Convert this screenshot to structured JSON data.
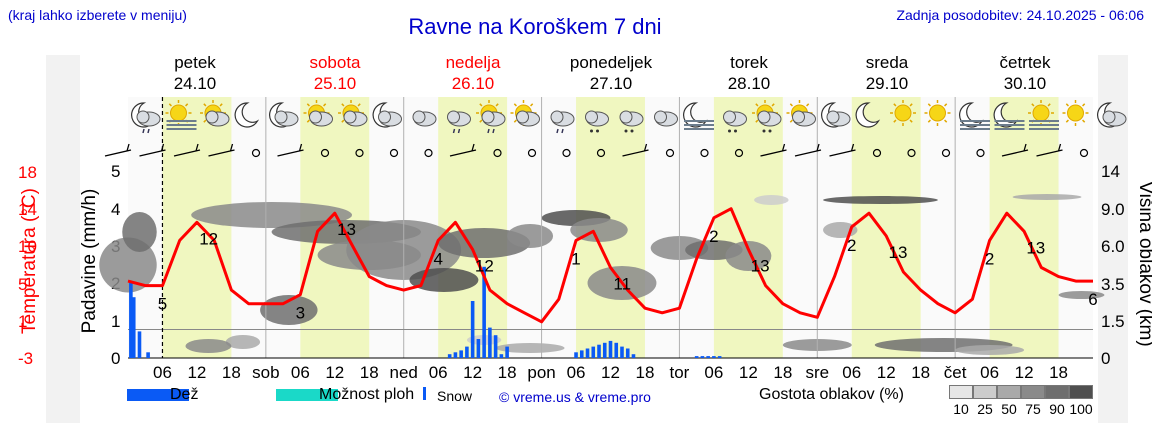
{
  "header": {
    "hint": "(kraj lahko izberete v meniju)",
    "title": "Ravne na Koroškem 7 dni",
    "updated": "Zadnja posodobitev: 24.10.2025 - 06:06"
  },
  "colors": {
    "temperature_line": "#ff0000",
    "rain_bar": "#0a5af5",
    "sleet": "#1ad9c8",
    "daytime_band": "#f0f7c0",
    "night_band": "#fafafa"
  },
  "days": [
    {
      "name": "petek",
      "date": "24.10",
      "color": "#000000"
    },
    {
      "name": "sobota",
      "date": "25.10",
      "color": "#ff0000"
    },
    {
      "name": "nedelja",
      "date": "26.10",
      "color": "#ff0000"
    },
    {
      "name": "ponedeljek",
      "date": "27.10",
      "color": "#000000"
    },
    {
      "name": "torek",
      "date": "28.10",
      "color": "#000000"
    },
    {
      "name": "sreda",
      "date": "29.10",
      "color": "#000000"
    },
    {
      "name": "četrtek",
      "date": "30.10",
      "color": "#000000"
    }
  ],
  "icons": [
    "moon-cloud-drizzle-icon",
    "sun-fog-icon",
    "sun-cloud-icon",
    "moon-icon",
    "moon-cloud-icon",
    "sun-cloud-icon",
    "sun-cloud-icon",
    "moon-cloud-icon",
    "cloud-icon",
    "cloud-drizzle-icon",
    "sun-cloud-drizzle-icon",
    "sun-cloud-icon",
    "cloud-rain-icon",
    "cloud-snow-icon",
    "cloud-snow-icon",
    "cloud-icon",
    "moon-fog-icon",
    "cloud-snow-icon",
    "sun-cloud-snow-icon",
    "sun-cloud-icon",
    "moon-cloud-icon",
    "moon-icon",
    "sun-icon",
    "sun-icon",
    "moon-fog-icon",
    "moon-fog-icon",
    "sun-fog-icon",
    "sun-icon",
    "moon-cloud-icon"
  ],
  "axes": {
    "temperature": {
      "title": "Temperatura (°C)",
      "ticks": [
        "18",
        "14",
        "10",
        "5",
        "1",
        "-3"
      ]
    },
    "rain": {
      "title": "Padavine (mm/h)",
      "ticks": [
        "5",
        "4",
        "3",
        "2",
        "1",
        "0"
      ]
    },
    "cloud_height": {
      "title": "Višina oblakov (km)",
      "ticks": [
        "14",
        "9.0",
        "6.0",
        "3.5",
        "1.5",
        "0"
      ]
    },
    "x_ticks": [
      "06",
      "12",
      "18",
      "sob",
      "06",
      "12",
      "18",
      "ned",
      "06",
      "12",
      "18",
      "pon",
      "06",
      "12",
      "18",
      "tor",
      "06",
      "12",
      "18",
      "sre",
      "06",
      "12",
      "18",
      "čet",
      "06",
      "12",
      "18"
    ]
  },
  "chart_data": {
    "type": "line",
    "title": "Ravne na Koroškem 7 dni",
    "ylabel": "Temperatura (°C)",
    "ylim": [
      -3,
      18
    ],
    "x_unit": "hours from 24.10 00:00",
    "series": [
      {
        "x": [
          0,
          3,
          6,
          9,
          12,
          15,
          18,
          21,
          24,
          27,
          30,
          33,
          36,
          39,
          42,
          45,
          48,
          51,
          54,
          57,
          60,
          63,
          66,
          69,
          72,
          75,
          78,
          81,
          84,
          87,
          90,
          93,
          96,
          99,
          102,
          105,
          108,
          111,
          114,
          117,
          120,
          123,
          126,
          129,
          132,
          135,
          138,
          141,
          144,
          147,
          150,
          153,
          156,
          159,
          162,
          165,
          168
        ],
        "values": [
          5.5,
          5.0,
          5.0,
          10.0,
          12.0,
          10.0,
          4.5,
          3.0,
          3.0,
          3.0,
          4.0,
          11.0,
          13.0,
          9.5,
          6.0,
          5.0,
          4.5,
          5.0,
          10.0,
          12.0,
          9.0,
          4.5,
          3.0,
          2.0,
          1.0,
          3.5,
          10.0,
          11.0,
          7.0,
          4.5,
          2.5,
          2.0,
          2.5,
          8.0,
          12.5,
          13.5,
          9.0,
          5.0,
          3.0,
          2.0,
          1.5,
          6.0,
          11.5,
          13.0,
          10.5,
          6.5,
          4.5,
          3.0,
          2.0,
          3.5,
          10.0,
          13.0,
          11.0,
          7.0,
          6.0,
          5.5,
          5.5
        ]
      }
    ],
    "labels": [
      {
        "x": 6,
        "text": "5"
      },
      {
        "x": 13,
        "text": "12"
      },
      {
        "x": 30,
        "text": "3"
      },
      {
        "x": 37,
        "text": "13"
      },
      {
        "x": 54,
        "text": "4"
      },
      {
        "x": 61,
        "text": "12"
      },
      {
        "x": 78,
        "text": "1"
      },
      {
        "x": 85,
        "text": "11"
      },
      {
        "x": 102,
        "text": "2"
      },
      {
        "x": 109,
        "text": "13"
      },
      {
        "x": 126,
        "text": "2"
      },
      {
        "x": 133,
        "text": "13"
      },
      {
        "x": 150,
        "text": "2"
      },
      {
        "x": 157,
        "text": "13"
      },
      {
        "x": 168,
        "text": "6"
      }
    ],
    "rain": {
      "ylim": [
        0,
        5
      ],
      "x": [
        0.5,
        1,
        2,
        3.5,
        56,
        57,
        58,
        59,
        60,
        61,
        62,
        63,
        64,
        65,
        66,
        78,
        79,
        80,
        81,
        82,
        83,
        84,
        85,
        86,
        87,
        88,
        99,
        100,
        101,
        102,
        103
      ],
      "values": [
        2.0,
        1.6,
        0.7,
        0.15,
        0.1,
        0.15,
        0.2,
        0.3,
        1.5,
        0.5,
        2.4,
        0.8,
        0.6,
        0.1,
        0.3,
        0.15,
        0.2,
        0.25,
        0.3,
        0.35,
        0.4,
        0.45,
        0.4,
        0.3,
        0.25,
        0.1,
        0.05,
        0.05,
        0.05,
        0.05,
        0.05
      ]
    },
    "cloud_height": {
      "ylim": [
        0,
        14
      ]
    }
  },
  "legend": {
    "rain": "Dež",
    "sleet": "Možnost ploh",
    "snow": "Snow",
    "copyright": "© vreme.us & vreme.pro",
    "cloud_density_title": "Gostota oblakov (%)",
    "cloud_density": [
      {
        "label": "10",
        "color": "#e6e6e6"
      },
      {
        "label": "25",
        "color": "#cccccc"
      },
      {
        "label": "50",
        "color": "#a9a9a9"
      },
      {
        "label": "75",
        "color": "#8a8a8a"
      },
      {
        "label": "90",
        "color": "#6e6e6e"
      },
      {
        "label": "100",
        "color": "#4f4f4f"
      }
    ]
  }
}
